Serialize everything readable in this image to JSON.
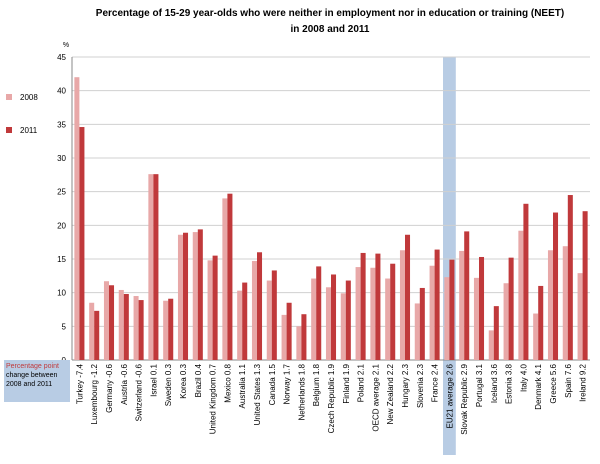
{
  "chart_data": {
    "type": "bar",
    "title_lines": [
      "Percentage of 15-29 year-olds who were neither in employment nor in education or training (NEET)",
      "in 2008 and 2011"
    ],
    "y_label": "%",
    "note_highlight": "Percentage point",
    "note": "change between 2008 and 2011",
    "categories": [
      "Turkey -7.4",
      "Luxembourg -1.2",
      "Germany -0.6",
      "Austria -0.6",
      "Switzerland -0.6",
      "Israel 0.1",
      "Sweden 0.3",
      "Korea 0.3",
      "Brazil 0.4",
      "United Kingdom 0.7",
      "Mexico 0.8",
      "Australia 1.1",
      "United States 1.3",
      "Canada 1.5",
      "Norway 1.7",
      "Netherlands 1.8",
      "Belgium 1.8",
      "Czech Republic 1.9",
      "Finland 1.9",
      "Poland 2.1",
      "OECD average 2.1",
      "New Zealand 2.2",
      "Hungary 2.3",
      "Slovenia 2.3",
      "France 2.4",
      "EU21 average 2.6",
      "Slovak Republic 2.9",
      "Portugal 3.1",
      "Iceland 3.6",
      "Estonia 3.8",
      "Italy 4.0",
      "Denmark 4.1",
      "Greece 5.6",
      "Spain 7.6",
      "Ireland 9.2"
    ],
    "series": [
      {
        "name": "2008",
        "color": "#e8a8a8",
        "values": [
          42,
          8.5,
          11.7,
          10.4,
          9.5,
          27.6,
          8.8,
          18.6,
          19.0,
          14.8,
          24.0,
          10.3,
          14.7,
          11.8,
          6.7,
          5.0,
          12.1,
          10.8,
          9.9,
          13.8,
          13.7,
          12.1,
          16.3,
          8.4,
          14.0,
          12.3,
          16.2,
          12.2,
          4.4,
          11.4,
          19.2,
          6.9,
          16.3,
          16.9,
          12.9
        ]
      },
      {
        "name": "2011",
        "color": "#c0393b",
        "values": [
          34.6,
          7.3,
          11.1,
          9.8,
          8.9,
          27.6,
          9.1,
          18.9,
          19.4,
          15.5,
          24.7,
          11.5,
          16.0,
          13.3,
          8.5,
          6.8,
          13.9,
          12.7,
          11.8,
          15.9,
          15.8,
          14.3,
          18.6,
          10.7,
          16.4,
          14.9,
          19.1,
          15.3,
          8.0,
          15.2,
          23.2,
          11.0,
          21.9,
          24.5,
          22.1
        ]
      }
    ],
    "highlight_index": 25,
    "highlight_color": "#b8cce4",
    "ylim": [
      0,
      45
    ],
    "yticks": [
      0,
      5,
      10,
      15,
      20,
      25,
      30,
      35,
      40,
      45
    ],
    "grid": true
  }
}
